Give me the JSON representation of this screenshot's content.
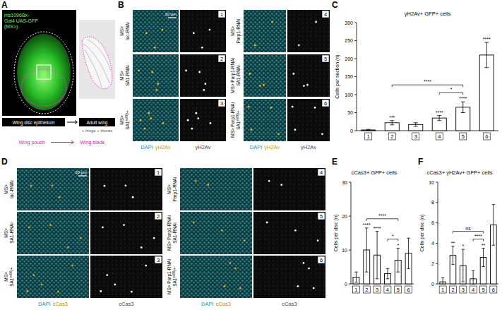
{
  "figure": {
    "A": {
      "panel": "A",
      "driver_lines": [
        "ms1096Bx-",
        "Gal4 UAS-GFP",
        "(MS>)"
      ],
      "disc_label": "Wing disc epithelium",
      "adult_label": "Adult wing",
      "adult_extra": "+ hinge + thorax",
      "pouch_label": "Wing pouch",
      "blade_label": "Wing blade"
    },
    "B": {
      "panel": "B",
      "merge_caption": [
        "DAPI",
        "γH2Av"
      ],
      "channel_caption": "γH2Av",
      "scale_bar": "10 μm"
    },
    "D": {
      "panel": "D",
      "merge_caption": [
        "DAPI",
        "cCas3"
      ],
      "channel_caption": "cCas3",
      "scale_bar": "10 μm"
    },
    "genotypes": [
      {
        "lines": [
          [
            "MS>"
          ],
          [
            "luc-RNAi"
          ]
        ]
      },
      {
        "lines": [
          [
            "MS>"
          ],
          [
            "SA1-RNAi"
          ]
        ]
      },
      {
        "lines": [
          [
            "MS>"
          ],
          [
            "SA1",
            {
              "sup": "ex86"
            },
            "/+"
          ]
        ]
      },
      {
        "lines": [
          [
            "MS>"
          ],
          [
            "Parp1-RNAi"
          ]
        ]
      },
      {
        "lines": [
          [
            "MS> Parp1-RNAi"
          ],
          [
            "SA1-RNAi"
          ]
        ]
      },
      {
        "lines": [
          [
            "MS> Parp1-RNAi"
          ],
          [
            "SA1",
            {
              "sup": "ex86"
            },
            "/+"
          ]
        ]
      }
    ],
    "conditions": [
      "1",
      "2",
      "3",
      "4",
      "5",
      "6"
    ]
  },
  "chart_data": [
    {
      "panel": "C",
      "type": "bar",
      "title": "γH2Av+ GFP+ cells",
      "y_label": "Cells per section (n)",
      "categories": [
        "1",
        "2",
        "3",
        "4",
        "5",
        "6"
      ],
      "values": [
        2,
        22,
        17,
        35,
        65,
        210
      ],
      "errors": [
        1.5,
        6,
        5,
        7,
        15,
        35
      ],
      "significance": [
        null,
        "***",
        null,
        "****",
        "****",
        "****"
      ],
      "comparisons": [
        {
          "between": [
            1,
            4
          ],
          "label": "****"
        },
        {
          "between": [
            3,
            4
          ],
          "label": "*"
        }
      ],
      "color": "#ffffff",
      "ylim": [
        0,
        300
      ],
      "yticks": [
        0,
        50,
        100,
        150,
        200,
        250,
        300
      ],
      "grid": false
    },
    {
      "panel": "E",
      "type": "bar",
      "title": "cCas3+ GFP+ cells",
      "y_label": "Cells per disc (n)",
      "categories": [
        "1",
        "2",
        "3",
        "4",
        "5",
        "6"
      ],
      "values": [
        2,
        10,
        8.5,
        3,
        7,
        9
      ],
      "errors": [
        1.5,
        6.5,
        7,
        1.5,
        3.5,
        4.5
      ],
      "significance": [
        null,
        "****",
        "****",
        null,
        "*",
        null
      ],
      "comparisons": [
        {
          "between": [
            1,
            4
          ],
          "label": "****"
        },
        {
          "between": [
            3,
            4
          ],
          "label": "*"
        }
      ],
      "color": "#ffffff",
      "ylim": [
        0,
        30
      ],
      "yticks": [
        0,
        10,
        20,
        30
      ],
      "grid": false
    },
    {
      "panel": "F",
      "type": "bar",
      "title": "cCas3+ γH2Av+ GFP+ cells",
      "y_label": "Cells per disc (n)",
      "categories": [
        "1",
        "2",
        "3",
        "4",
        "5",
        "6"
      ],
      "values": [
        0.2,
        2.8,
        1.8,
        0.5,
        2.6,
        5.8
      ],
      "errors": [
        0.4,
        0.9,
        1.6,
        0.8,
        0.9,
        2.0
      ],
      "significance": [
        null,
        "**",
        "*",
        null,
        "**",
        null
      ],
      "comparisons": [
        {
          "between": [
            1,
            4
          ],
          "label": "ns"
        },
        {
          "between": [
            3,
            4
          ],
          "label": "****"
        }
      ],
      "color": "#ffffff",
      "ylim": [
        0,
        10
      ],
      "yticks": [
        0,
        2,
        4,
        6,
        8,
        10
      ],
      "grid": false
    }
  ]
}
